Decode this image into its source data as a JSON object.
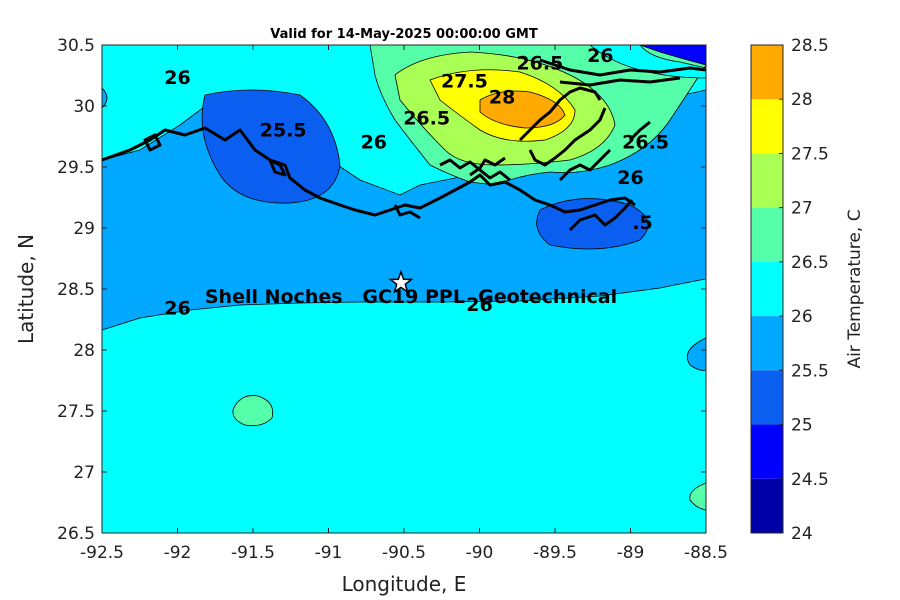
{
  "title": "Valid for 14-May-2025 00:00:00 GMT",
  "colorbar_label": "Air Temperature, C",
  "site_label": "Shell Noches   GC19 PPL  Geotechnical",
  "chart_data": {
    "type": "heatmap",
    "title": "Valid for 14-May-2025 00:00:00 GMT",
    "xlabel": "Longitude, E",
    "ylabel": "Latitude, N",
    "xlim": [
      -92.5,
      -88.5
    ],
    "ylim": [
      26.5,
      30.5
    ],
    "xticks": [
      "-92.5",
      "-92",
      "-91.5",
      "-91",
      "-90.5",
      "-90",
      "-89.5",
      "-89",
      "-88.5"
    ],
    "yticks": [
      "26.5",
      "27",
      "27.5",
      "28",
      "28.5",
      "29",
      "29.5",
      "30",
      "30.5"
    ],
    "colorbar": {
      "label": "Air Temperature, C",
      "levels": [
        24,
        24.5,
        25,
        25.5,
        26,
        26.5,
        27,
        27.5,
        28,
        28.5
      ],
      "tick_labels": [
        "24",
        "24.5",
        "25",
        "25.5",
        "26",
        "26.5",
        "27",
        "27.5",
        "28",
        "28.5"
      ],
      "colors": [
        "#0000a8",
        "#0000ff",
        "#0a5ff0",
        "#00a8ff",
        "#00ffff",
        "#55ffaa",
        "#aaff55",
        "#ffff00",
        "#ffaa00",
        "#ff5500"
      ]
    },
    "contour_labels": [
      {
        "text": "26",
        "lon": -92.0,
        "lat": 30.18
      },
      {
        "text": "25.5",
        "lon": -91.3,
        "lat": 29.75
      },
      {
        "text": "26",
        "lon": -90.7,
        "lat": 29.65
      },
      {
        "text": "26.5",
        "lon": -90.35,
        "lat": 29.85
      },
      {
        "text": "27.5",
        "lon": -90.1,
        "lat": 30.15
      },
      {
        "text": "28",
        "lon": -89.85,
        "lat": 30.02
      },
      {
        "text": "26.5",
        "lon": -89.6,
        "lat": 30.3
      },
      {
        "text": "26",
        "lon": -89.2,
        "lat": 30.36
      },
      {
        "text": "26.5",
        "lon": -88.9,
        "lat": 29.65
      },
      {
        "text": "26",
        "lon": -89.0,
        "lat": 29.36
      },
      {
        "text": ".5",
        "lon": -88.92,
        "lat": 28.99
      },
      {
        "text": "26",
        "lon": -92.0,
        "lat": 28.29
      },
      {
        "text": "26",
        "lon": -90.0,
        "lat": 28.32
      }
    ],
    "site": {
      "name": "Shell Noches   GC19 PPL  Geotechnical",
      "lon": -90.52,
      "lat": 28.55
    }
  }
}
